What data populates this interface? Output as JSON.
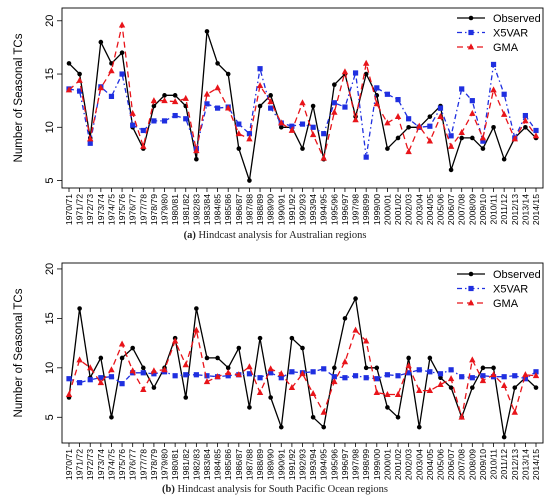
{
  "seasons": [
    "1970/71",
    "1971/72",
    "1972/73",
    "1973/74",
    "1974/75",
    "1975/76",
    "1976/77",
    "1977/78",
    "1978/79",
    "1979/80",
    "1980/81",
    "1981/82",
    "1982/83",
    "1983/84",
    "1984/85",
    "1985/86",
    "1986/87",
    "1987/88",
    "1988/89",
    "1989/90",
    "1990/91",
    "1991/92",
    "1992/93",
    "1993/94",
    "1994/95",
    "1995/96",
    "1996/97",
    "1997/98",
    "1998/99",
    "1999/00",
    "2000/01",
    "2001/02",
    "2002/03",
    "2003/04",
    "2004/05",
    "2005/06",
    "2006/07",
    "2007/08",
    "2008/09",
    "2009/10",
    "2010/11",
    "2011/12",
    "2012/13",
    "2013/14",
    "2014/15"
  ],
  "colors": {
    "observed": "#000000",
    "x5var": "#1f2fe0",
    "gma": "#e8141a"
  },
  "chart_data": [
    {
      "type": "line",
      "caption_label": "(a)",
      "caption_text": "Hindcast analysis for Australian regions",
      "ylabel": "Number of Seasonal TCs",
      "xlabel": "",
      "ylim": [
        4.3,
        21.2
      ],
      "yticks": [
        5,
        10,
        15,
        20
      ],
      "grid": false,
      "legend_position": "top-right",
      "series": [
        {
          "name": "Observed",
          "values": [
            16,
            15,
            9,
            18,
            16,
            17,
            10,
            8,
            12,
            13,
            13,
            12,
            7,
            19,
            16,
            15,
            8,
            5,
            12,
            13,
            10,
            10,
            8,
            12,
            7,
            14,
            15,
            11,
            15,
            13,
            8,
            9,
            10,
            10,
            11,
            12,
            6,
            9,
            9,
            8,
            10,
            7,
            9,
            10,
            9
          ]
        },
        {
          "name": "X5VAR",
          "values": [
            13.6,
            13.4,
            8.5,
            13.8,
            12.9,
            15.0,
            10.2,
            9.7,
            10.6,
            10.6,
            11.1,
            10.8,
            8.0,
            12.2,
            11.8,
            11.9,
            10.3,
            9.4,
            15.5,
            11.8,
            10.4,
            10.1,
            10.3,
            10.0,
            9.4,
            12.3,
            11.9,
            15.1,
            7.2,
            13.7,
            13.1,
            12.6,
            10.8,
            10.0,
            10.1,
            11.8,
            9.2,
            13.6,
            12.5,
            8.7,
            15.9,
            13.1,
            9.0,
            11.1,
            9.7
          ]
        },
        {
          "name": "GMA",
          "values": [
            13.5,
            14.4,
            8.9,
            13.7,
            15.3,
            19.6,
            11.3,
            8.2,
            12.5,
            12.5,
            12.4,
            12.7,
            7.8,
            13.1,
            13.7,
            11.8,
            9.4,
            8.9,
            13.9,
            12.4,
            10.4,
            9.7,
            12.3,
            9.3,
            7.1,
            11.4,
            15.2,
            10.7,
            16.0,
            12.2,
            10.4,
            11.0,
            7.7,
            10.1,
            8.7,
            11.0,
            8.2,
            9.5,
            11.3,
            9.0,
            13.5,
            11.2,
            8.9,
            10.6,
            9.2
          ]
        }
      ]
    },
    {
      "type": "line",
      "caption_label": "(b)",
      "caption_text": "Hindcast analysis for South Pacific Ocean regions",
      "ylabel": "Number of Seasonal TCs",
      "xlabel": "",
      "ylim": [
        2.4,
        20.6
      ],
      "yticks": [
        5,
        10,
        15,
        20
      ],
      "grid": false,
      "legend_position": "top-right",
      "series": [
        {
          "name": "Observed",
          "values": [
            7,
            16,
            9,
            11,
            5,
            11,
            12,
            10,
            8,
            10,
            13,
            7,
            16,
            11,
            11,
            10,
            12,
            6,
            13,
            7,
            4,
            13,
            12,
            5,
            4,
            10,
            15,
            17,
            10,
            10,
            6,
            5,
            11,
            4,
            11,
            9,
            8,
            5,
            8,
            10,
            10,
            3,
            8,
            9,
            8
          ]
        },
        {
          "name": "X5VAR",
          "values": [
            8.9,
            8.5,
            8.8,
            9.0,
            9.1,
            8.4,
            9.5,
            9.5,
            9.4,
            9.6,
            9.2,
            9.3,
            9.3,
            9.2,
            9.1,
            9.2,
            9.3,
            9.4,
            9.0,
            9.5,
            9.0,
            9.6,
            9.5,
            9.6,
            9.9,
            9.1,
            9.0,
            9.2,
            9.0,
            8.9,
            9.3,
            9.2,
            9.5,
            9.8,
            9.6,
            9.4,
            9.8,
            9.1,
            9.0,
            9.2,
            9.1,
            9.1,
            9.2,
            8.9,
            9.6
          ]
        },
        {
          "name": "GMA",
          "values": [
            7.3,
            10.8,
            10.0,
            8.5,
            9.8,
            12.4,
            9.7,
            7.8,
            9.7,
            9.8,
            12.7,
            10.3,
            13.8,
            8.6,
            9.1,
            9.5,
            9.3,
            10.1,
            7.5,
            9.9,
            9.4,
            8.0,
            9.4,
            7.4,
            5.5,
            8.6,
            10.6,
            13.8,
            12.7,
            7.5,
            7.3,
            7.3,
            10.2,
            7.7,
            7.7,
            8.3,
            8.9,
            5.0,
            10.8,
            8.7,
            9.3,
            8.2,
            5.5,
            9.3,
            9.2
          ]
        }
      ]
    }
  ]
}
